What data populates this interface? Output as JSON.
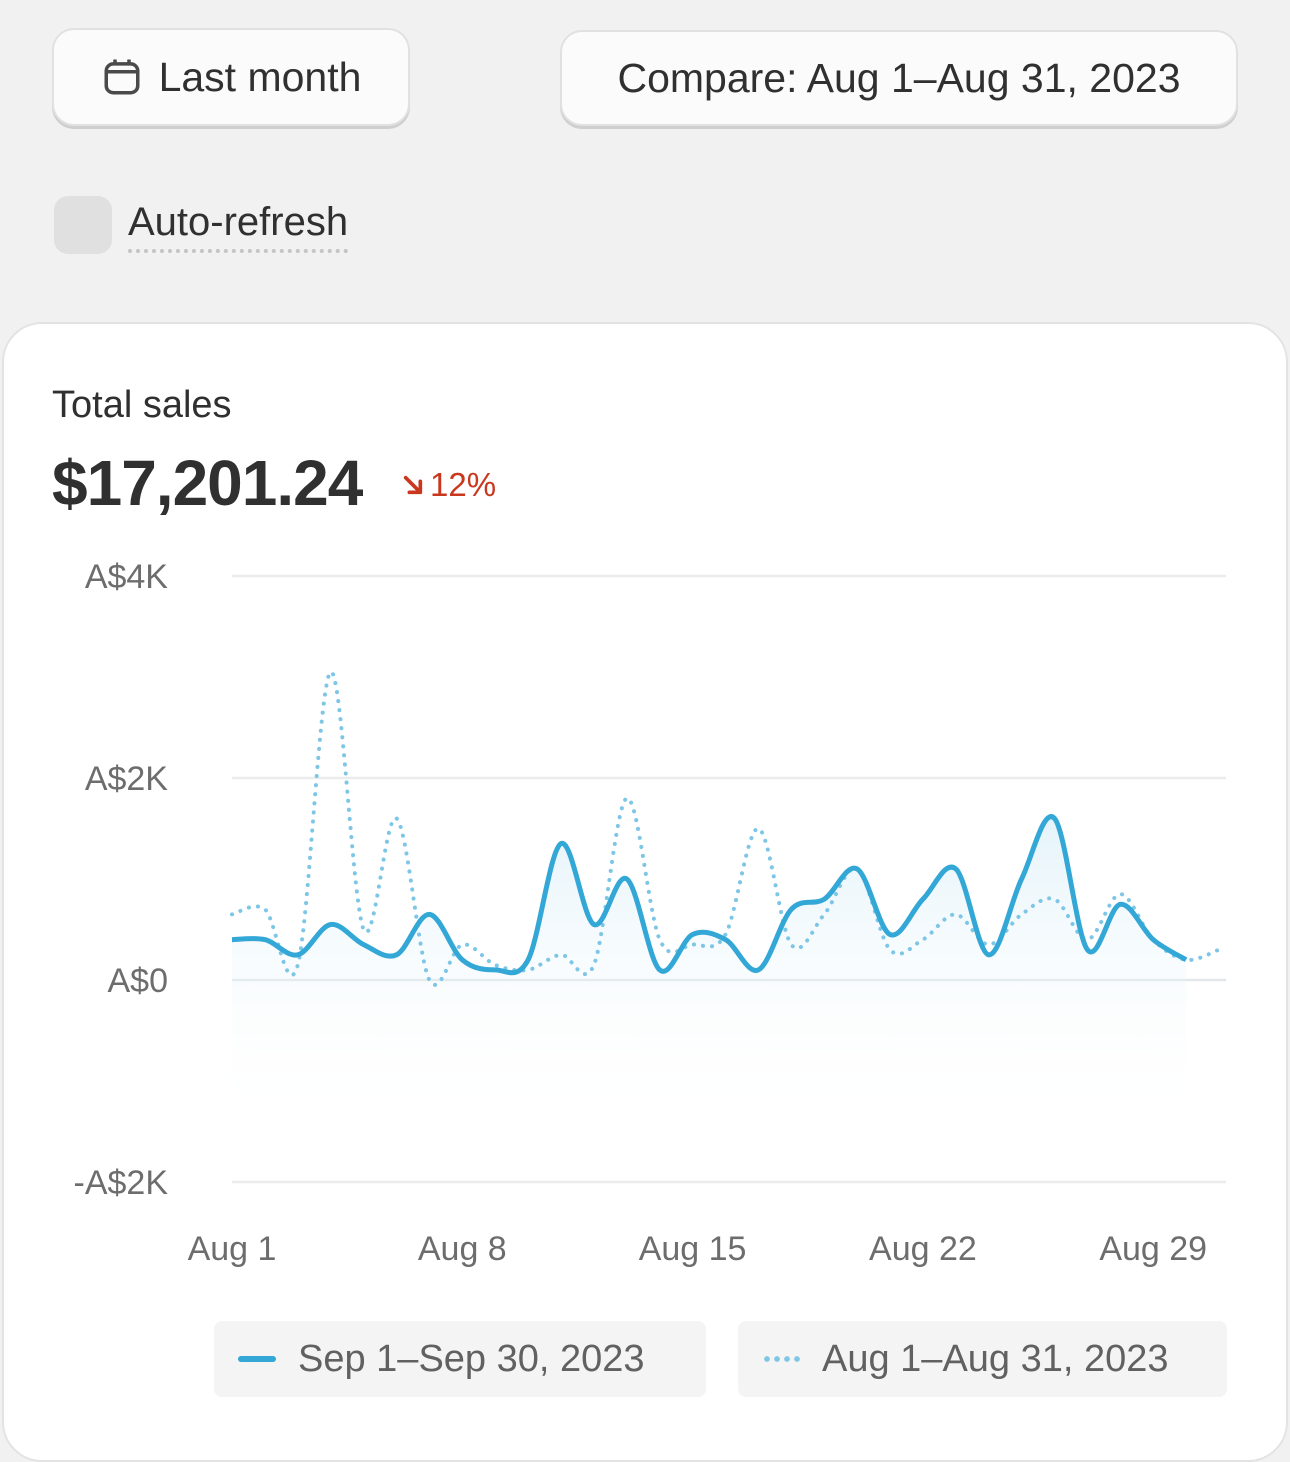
{
  "controls": {
    "date_range_label": "Last month",
    "compare_label": "Compare: Aug 1–Aug 31, 2023",
    "auto_refresh_label": "Auto-refresh",
    "auto_refresh_checked": false
  },
  "metric": {
    "title": "Total sales",
    "value": "$17,201.24",
    "change": "12%",
    "change_direction": "down",
    "change_color": "#c9371f"
  },
  "colors": {
    "current_series": "#33a7d6",
    "compare_series": "#7dc6e5"
  },
  "chart_data": {
    "type": "line",
    "title": "",
    "xlabel": "",
    "ylabel": "",
    "ylim": [
      -2000,
      4000
    ],
    "y_ticks": [
      {
        "value": 4000,
        "label": "A$4K"
      },
      {
        "value": 2000,
        "label": "A$2K"
      },
      {
        "value": 0,
        "label": "A$0"
      },
      {
        "value": -2000,
        "label": "-A$2K"
      }
    ],
    "x_ticks": [
      {
        "day": 1,
        "label": "Aug 1"
      },
      {
        "day": 8,
        "label": "Aug 8"
      },
      {
        "day": 15,
        "label": "Aug 15"
      },
      {
        "day": 22,
        "label": "Aug 22"
      },
      {
        "day": 29,
        "label": "Aug 29"
      }
    ],
    "grid": true,
    "legend_position": "bottom",
    "series": [
      {
        "name": "Sep 1–Sep 30, 2023",
        "style": "solid",
        "x": [
          1,
          2,
          3,
          4,
          5,
          6,
          7,
          8,
          9,
          10,
          11,
          12,
          13,
          14,
          15,
          16,
          17,
          18,
          19,
          20,
          21,
          22,
          23,
          24,
          25,
          26,
          27,
          28,
          29,
          30
        ],
        "y": [
          400,
          400,
          250,
          550,
          350,
          250,
          650,
          200,
          100,
          200,
          1350,
          550,
          1000,
          100,
          450,
          400,
          100,
          700,
          800,
          1100,
          450,
          800,
          1100,
          250,
          1000,
          1600,
          300,
          750,
          400,
          200
        ]
      },
      {
        "name": "Aug 1–Aug 31, 2023",
        "style": "dotted",
        "x": [
          1,
          2,
          3,
          4,
          5,
          6,
          7,
          8,
          9,
          10,
          11,
          12,
          13,
          14,
          15,
          16,
          17,
          18,
          19,
          20,
          21,
          22,
          23,
          24,
          25,
          26,
          27,
          28,
          29,
          30,
          31
        ],
        "y": [
          650,
          700,
          150,
          3050,
          500,
          1600,
          0,
          350,
          150,
          100,
          250,
          150,
          1800,
          400,
          350,
          450,
          1500,
          350,
          650,
          1100,
          300,
          400,
          650,
          350,
          650,
          800,
          400,
          850,
          400,
          200,
          300
        ]
      }
    ]
  }
}
